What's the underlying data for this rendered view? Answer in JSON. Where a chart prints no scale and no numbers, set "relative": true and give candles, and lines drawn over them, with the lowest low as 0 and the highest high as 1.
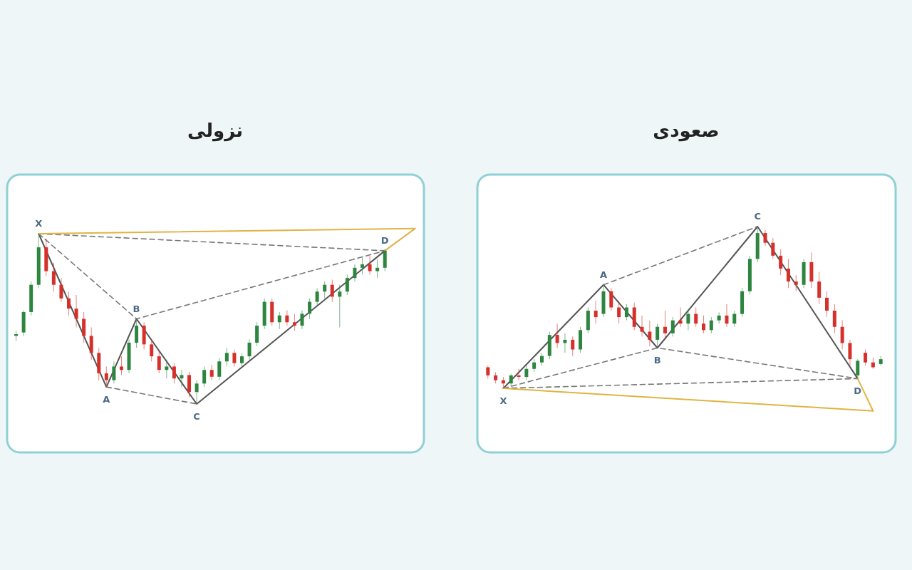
{
  "chart_data": [
    {
      "type": "candlestick",
      "title": "نزولی",
      "relative": true,
      "categories": [
        null,
        null,
        null,
        null,
        null,
        null,
        null,
        null,
        null,
        null,
        null,
        null,
        null,
        null,
        null,
        null,
        null,
        null,
        null,
        null,
        null,
        null,
        null,
        null,
        null,
        null,
        null,
        null,
        null,
        null,
        null,
        null,
        null,
        null,
        null,
        null,
        null,
        null,
        null,
        null,
        null,
        null,
        null,
        null,
        null,
        null,
        null,
        null,
        null,
        null,
        null,
        null,
        null,
        null
      ],
      "series": [
        {
          "ohlc": [
            [
              0.4,
              0.43,
              0.37,
              0.41
            ],
            [
              0.42,
              0.55,
              0.4,
              0.54
            ],
            [
              0.54,
              0.72,
              0.52,
              0.7
            ],
            [
              0.7,
              1,
              0.68,
              0.92
            ],
            [
              0.92,
              0.97,
              0.75,
              0.78
            ],
            [
              0.78,
              0.83,
              0.66,
              0.7
            ],
            [
              0.7,
              0.74,
              0.6,
              0.62
            ],
            [
              0.62,
              0.66,
              0.52,
              0.56
            ],
            [
              0.56,
              0.64,
              0.45,
              0.5
            ],
            [
              0.5,
              0.54,
              0.36,
              0.4
            ],
            [
              0.4,
              0.45,
              0.26,
              0.3
            ],
            [
              0.3,
              0.33,
              0.14,
              0.18
            ],
            [
              0.18,
              0.22,
              0.1,
              0.14
            ],
            [
              0.14,
              0.25,
              0.12,
              0.22
            ],
            [
              0.22,
              0.28,
              0.17,
              0.2
            ],
            [
              0.2,
              0.38,
              0.18,
              0.36
            ],
            [
              0.36,
              0.5,
              0.33,
              0.46
            ],
            [
              0.46,
              0.48,
              0.32,
              0.35
            ],
            [
              0.35,
              0.38,
              0.25,
              0.28
            ],
            [
              0.28,
              0.31,
              0.18,
              0.2
            ],
            [
              0.2,
              0.26,
              0.15,
              0.22
            ],
            [
              0.22,
              0.24,
              0.12,
              0.15
            ],
            [
              0.15,
              0.2,
              0.1,
              0.17
            ],
            [
              0.17,
              0.19,
              0.04,
              0.07
            ],
            [
              0.07,
              0.14,
              0,
              0.12
            ],
            [
              0.12,
              0.22,
              0.1,
              0.2
            ],
            [
              0.2,
              0.23,
              0.14,
              0.16
            ],
            [
              0.16,
              0.27,
              0.14,
              0.25
            ],
            [
              0.25,
              0.33,
              0.22,
              0.3
            ],
            [
              0.3,
              0.32,
              0.22,
              0.24
            ],
            [
              0.24,
              0.3,
              0.22,
              0.28
            ],
            [
              0.28,
              0.38,
              0.26,
              0.36
            ],
            [
              0.36,
              0.48,
              0.34,
              0.46
            ],
            [
              0.46,
              0.62,
              0.44,
              0.6
            ],
            [
              0.6,
              0.62,
              0.46,
              0.48
            ],
            [
              0.48,
              0.54,
              0.44,
              0.52
            ],
            [
              0.52,
              0.55,
              0.46,
              0.48
            ],
            [
              0.48,
              0.53,
              0.43,
              0.46
            ],
            [
              0.46,
              0.55,
              0.44,
              0.53
            ],
            [
              0.53,
              0.62,
              0.5,
              0.6
            ],
            [
              0.6,
              0.68,
              0.58,
              0.66
            ],
            [
              0.66,
              0.72,
              0.62,
              0.7
            ],
            [
              0.7,
              0.73,
              0.6,
              0.63
            ],
            [
              0.63,
              0.7,
              0.45,
              0.66
            ],
            [
              0.66,
              0.76,
              0.64,
              0.74
            ],
            [
              0.74,
              0.82,
              0.72,
              0.8
            ],
            [
              0.8,
              0.86,
              0.76,
              0.82
            ],
            [
              0.82,
              0.87,
              0.76,
              0.78
            ],
            [
              0.78,
              0.85,
              0.74,
              0.8
            ],
            [
              0.8,
              0.91,
              0.78,
              0.9
            ],
            null,
            null,
            null,
            null
          ],
          "colors": [
            "#2e8540",
            "#2e8540",
            "#2e8540",
            "#2e8540",
            "#d6302b",
            "#d6302b",
            "#d6302b",
            "#d6302b",
            "#d6302b",
            "#d6302b",
            "#d6302b",
            "#d6302b",
            "#d6302b",
            "#2e8540",
            "#d6302b",
            "#2e8540",
            "#2e8540",
            "#d6302b",
            "#d6302b",
            "#d6302b",
            "#2e8540",
            "#d6302b",
            "#2e8540",
            "#d6302b",
            "#2e8540",
            "#2e8540",
            "#d6302b",
            "#2e8540",
            "#2e8540",
            "#d6302b",
            "#2e8540",
            "#2e8540",
            "#2e8540",
            "#2e8540",
            "#d6302b",
            "#2e8540",
            "#d6302b",
            "#d6302b",
            "#2e8540",
            "#2e8540",
            "#2e8540",
            "#2e8540",
            "#d6302b",
            "#2e8540",
            "#2e8540",
            "#2e8540",
            "#2e8540",
            "#d6302b",
            "#2e8540",
            "#2e8540",
            null,
            null,
            null,
            null
          ]
        },
        {
          "type": "line",
          "color": "#555555",
          "line_style": "solid",
          "values": [
            null,
            null,
            null,
            1,
            null,
            null,
            null,
            null,
            null,
            null,
            null,
            null,
            0.1,
            null,
            null,
            null,
            0.5,
            null,
            null,
            null,
            null,
            null,
            null,
            null,
            0,
            null,
            null,
            null,
            null,
            null,
            null,
            null,
            null,
            null,
            null,
            null,
            null,
            null,
            null,
            null,
            null,
            null,
            null,
            null,
            null,
            null,
            null,
            null,
            null,
            0.9,
            null,
            null,
            null,
            null
          ]
        },
        {
          "type": "line",
          "color": "#777777",
          "line_style": "dashed",
          "values": [
            null,
            null,
            null,
            1,
            null,
            null,
            null,
            null,
            null,
            null,
            null,
            null,
            null,
            null,
            null,
            null,
            0.5,
            null,
            null,
            null,
            null,
            null,
            null,
            null,
            null,
            null,
            null,
            null,
            null,
            null,
            null,
            null,
            null,
            null,
            null,
            null,
            null,
            null,
            null,
            null,
            null,
            null,
            null,
            null,
            null,
            null,
            null,
            null,
            null,
            0.9,
            null,
            null,
            null,
            null
          ]
        },
        {
          "type": "line",
          "color": "#777777",
          "line_style": "dashed",
          "values": [
            null,
            null,
            null,
            null,
            null,
            null,
            null,
            null,
            null,
            null,
            null,
            null,
            0.1,
            null,
            null,
            null,
            null,
            null,
            null,
            null,
            null,
            null,
            null,
            null,
            0,
            null,
            null,
            null,
            null,
            null,
            null,
            null,
            null,
            null,
            null,
            null,
            null,
            null,
            null,
            null,
            null,
            null,
            null,
            null,
            null,
            null,
            null,
            null,
            null,
            null,
            null,
            null,
            null,
            null
          ]
        },
        {
          "type": "line",
          "color": "#777777",
          "line_style": "dashed",
          "values": [
            null,
            null,
            null,
            1,
            null,
            null,
            null,
            null,
            null,
            null,
            null,
            null,
            null,
            null,
            null,
            null,
            null,
            null,
            null,
            null,
            null,
            null,
            null,
            null,
            null,
            null,
            null,
            null,
            null,
            null,
            null,
            null,
            null,
            null,
            null,
            null,
            null,
            null,
            null,
            null,
            null,
            null,
            null,
            null,
            null,
            null,
            null,
            null,
            null,
            0.9,
            null,
            null,
            null,
            null
          ]
        },
        {
          "type": "line",
          "color": "#e0b444",
          "line_style": "solid",
          "values": [
            null,
            null,
            null,
            1,
            null,
            null,
            null,
            null,
            null,
            null,
            null,
            null,
            null,
            null,
            null,
            null,
            null,
            null,
            null,
            null,
            null,
            null,
            null,
            null,
            null,
            null,
            null,
            null,
            null,
            null,
            null,
            null,
            null,
            null,
            null,
            null,
            null,
            null,
            null,
            null,
            null,
            null,
            null,
            null,
            null,
            null,
            null,
            null,
            null,
            null,
            null,
            null,
            null,
            1.03
          ]
        },
        {
          "type": "line",
          "color": "#e0b444",
          "line_style": "solid",
          "values": [
            null,
            null,
            null,
            null,
            null,
            null,
            null,
            null,
            null,
            null,
            null,
            null,
            null,
            null,
            null,
            null,
            null,
            null,
            null,
            null,
            null,
            null,
            null,
            null,
            null,
            null,
            null,
            null,
            null,
            null,
            null,
            null,
            null,
            null,
            null,
            null,
            null,
            null,
            null,
            null,
            null,
            null,
            null,
            null,
            null,
            null,
            null,
            null,
            null,
            0.9,
            null,
            null,
            null,
            1.03
          ]
        }
      ],
      "annotations": [
        "X",
        "A",
        "B",
        "C",
        "D"
      ]
    },
    {
      "type": "candlestick",
      "title": "صعودی",
      "relative": true,
      "categories": [
        null,
        null,
        null,
        null,
        null,
        null,
        null,
        null,
        null,
        null,
        null,
        null,
        null,
        null,
        null,
        null,
        null,
        null,
        null,
        null,
        null,
        null,
        null,
        null,
        null,
        null,
        null,
        null,
        null,
        null,
        null,
        null,
        null,
        null,
        null,
        null,
        null,
        null,
        null,
        null,
        null,
        null,
        null,
        null,
        null,
        null,
        null,
        null,
        null,
        null,
        null,
        null
      ],
      "series": [
        {
          "ohlc": [
            [
              0.13,
              0.14,
              0.06,
              0.08
            ],
            [
              0.08,
              0.1,
              0.03,
              0.05
            ],
            [
              0.05,
              0.07,
              0,
              0.03
            ],
            [
              0.03,
              0.09,
              0.01,
              0.08
            ],
            [
              0.08,
              0.12,
              0.05,
              0.07
            ],
            [
              0.07,
              0.14,
              0.05,
              0.12
            ],
            [
              0.12,
              0.18,
              0.1,
              0.16
            ],
            [
              0.16,
              0.22,
              0.14,
              0.2
            ],
            [
              0.2,
              0.35,
              0.18,
              0.33
            ],
            [
              0.33,
              0.4,
              0.25,
              0.28
            ],
            [
              0.28,
              0.34,
              0.22,
              0.3
            ],
            [
              0.3,
              0.32,
              0.2,
              0.24
            ],
            [
              0.24,
              0.38,
              0.22,
              0.36
            ],
            [
              0.36,
              0.5,
              0.34,
              0.48
            ],
            [
              0.48,
              0.54,
              0.4,
              0.44
            ],
            [
              0.46,
              0.64,
              0.44,
              0.6
            ],
            [
              0.6,
              0.62,
              0.48,
              0.5
            ],
            [
              0.5,
              0.54,
              0.4,
              0.44
            ],
            [
              0.44,
              0.52,
              0.42,
              0.5
            ],
            [
              0.5,
              0.53,
              0.36,
              0.38
            ],
            [
              0.38,
              0.45,
              0.32,
              0.35
            ],
            [
              0.35,
              0.42,
              0.26,
              0.3
            ],
            [
              0.3,
              0.4,
              0.25,
              0.38
            ],
            [
              0.38,
              0.48,
              0.3,
              0.34
            ],
            [
              0.34,
              0.44,
              0.32,
              0.42
            ],
            [
              0.42,
              0.5,
              0.38,
              0.4
            ],
            [
              0.4,
              0.48,
              0.36,
              0.46
            ],
            [
              0.46,
              0.5,
              0.38,
              0.4
            ],
            [
              0.4,
              0.45,
              0.34,
              0.36
            ],
            [
              0.36,
              0.44,
              0.34,
              0.42
            ],
            [
              0.42,
              0.47,
              0.4,
              0.45
            ],
            [
              0.45,
              0.52,
              0.38,
              0.4
            ],
            [
              0.4,
              0.48,
              0.38,
              0.46
            ],
            [
              0.46,
              0.62,
              0.44,
              0.6
            ],
            [
              0.6,
              0.82,
              0.58,
              0.8
            ],
            [
              0.8,
              1,
              0.78,
              0.96
            ],
            [
              0.96,
              0.98,
              0.88,
              0.9
            ],
            [
              0.9,
              0.93,
              0.8,
              0.82
            ],
            [
              0.82,
              0.86,
              0.7,
              0.74
            ],
            [
              0.74,
              0.8,
              0.62,
              0.66
            ],
            [
              0.66,
              0.7,
              0.6,
              0.64
            ],
            [
              0.64,
              0.8,
              0.62,
              0.78
            ],
            [
              0.78,
              0.84,
              0.62,
              0.66
            ],
            [
              0.66,
              0.72,
              0.52,
              0.56
            ],
            [
              0.56,
              0.6,
              0.44,
              0.48
            ],
            [
              0.48,
              0.52,
              0.34,
              0.38
            ],
            [
              0.38,
              0.42,
              0.24,
              0.28
            ],
            [
              0.28,
              0.3,
              0.14,
              0.18
            ],
            [
              0.08,
              0.18,
              0.06,
              0.17
            ],
            [
              0.22,
              0.24,
              0.14,
              0.16
            ],
            [
              0.16,
              0.19,
              0.12,
              0.13
            ],
            [
              0.15,
              0.2,
              0.14,
              0.18
            ]
          ],
          "colors": [
            "#d6302b",
            "#d6302b",
            "#d6302b",
            "#2e8540",
            "#d6302b",
            "#2e8540",
            "#2e8540",
            "#2e8540",
            "#2e8540",
            "#d6302b",
            "#2e8540",
            "#d6302b",
            "#2e8540",
            "#2e8540",
            "#d6302b",
            "#2e8540",
            "#d6302b",
            "#d6302b",
            "#2e8540",
            "#d6302b",
            "#d6302b",
            "#d6302b",
            "#2e8540",
            "#d6302b",
            "#2e8540",
            "#d6302b",
            "#2e8540",
            "#d6302b",
            "#d6302b",
            "#2e8540",
            "#2e8540",
            "#d6302b",
            "#2e8540",
            "#2e8540",
            "#2e8540",
            "#2e8540",
            "#d6302b",
            "#d6302b",
            "#d6302b",
            "#d6302b",
            "#d6302b",
            "#2e8540",
            "#d6302b",
            "#d6302b",
            "#d6302b",
            "#d6302b",
            "#d6302b",
            "#d6302b",
            "#2e8540",
            "#d6302b",
            "#d6302b",
            "#2e8540"
          ]
        },
        {
          "type": "line",
          "color": "#555555",
          "line_style": "solid",
          "values": [
            null,
            null,
            0,
            null,
            null,
            null,
            null,
            null,
            null,
            null,
            null,
            null,
            null,
            null,
            null,
            0.64,
            null,
            null,
            null,
            null,
            null,
            null,
            0.25,
            null,
            null,
            null,
            null,
            null,
            null,
            null,
            null,
            null,
            null,
            null,
            null,
            1,
            null,
            null,
            null,
            null,
            null,
            null,
            null,
            null,
            null,
            null,
            null,
            null,
            0.06,
            null,
            null,
            null
          ]
        },
        {
          "type": "line",
          "color": "#777777",
          "line_style": "dashed",
          "values": [
            null,
            null,
            null,
            null,
            null,
            null,
            null,
            null,
            null,
            null,
            null,
            null,
            null,
            null,
            null,
            0.64,
            null,
            null,
            null,
            null,
            null,
            null,
            null,
            null,
            null,
            null,
            null,
            null,
            null,
            null,
            null,
            null,
            null,
            null,
            null,
            1,
            null,
            null,
            null,
            null,
            null,
            null,
            null,
            null,
            null,
            null,
            null,
            null,
            null,
            null,
            null,
            null
          ]
        },
        {
          "type": "line",
          "color": "#777777",
          "line_style": "dashed",
          "values": [
            null,
            null,
            0,
            null,
            null,
            null,
            null,
            null,
            null,
            null,
            null,
            null,
            null,
            null,
            null,
            null,
            null,
            null,
            null,
            null,
            null,
            null,
            0.25,
            null,
            null,
            null,
            null,
            null,
            null,
            null,
            null,
            null,
            null,
            null,
            null,
            null,
            null,
            null,
            null,
            null,
            null,
            null,
            null,
            null,
            null,
            null,
            null,
            null,
            0.06,
            null,
            null,
            null
          ]
        },
        {
          "type": "line",
          "color": "#777777",
          "line_style": "dashed",
          "values": [
            null,
            null,
            0,
            null,
            null,
            null,
            null,
            null,
            null,
            null,
            null,
            null,
            null,
            null,
            null,
            null,
            null,
            null,
            null,
            null,
            null,
            null,
            null,
            null,
            null,
            null,
            null,
            null,
            null,
            null,
            null,
            null,
            null,
            null,
            null,
            null,
            null,
            null,
            null,
            null,
            null,
            null,
            null,
            null,
            null,
            null,
            null,
            null,
            0.06,
            null,
            null,
            null
          ]
        },
        {
          "type": "line",
          "color": "#e0b444",
          "line_style": "solid",
          "values": [
            null,
            null,
            0,
            null,
            null,
            null,
            null,
            null,
            null,
            null,
            null,
            null,
            null,
            null,
            null,
            null,
            null,
            null,
            null,
            null,
            null,
            null,
            null,
            null,
            null,
            null,
            null,
            null,
            null,
            null,
            null,
            null,
            null,
            null,
            null,
            null,
            null,
            null,
            null,
            null,
            null,
            null,
            null,
            null,
            null,
            null,
            null,
            null,
            null,
            null,
            -0.14,
            null
          ]
        },
        {
          "type": "line",
          "color": "#e0b444",
          "line_style": "solid",
          "values": [
            null,
            null,
            null,
            null,
            null,
            null,
            null,
            null,
            null,
            null,
            null,
            null,
            null,
            null,
            null,
            null,
            null,
            null,
            null,
            null,
            null,
            null,
            null,
            null,
            null,
            null,
            null,
            null,
            null,
            null,
            null,
            null,
            null,
            null,
            null,
            null,
            null,
            null,
            null,
            null,
            null,
            null,
            null,
            null,
            null,
            null,
            null,
            null,
            0.06,
            null,
            -0.14,
            null
          ]
        }
      ],
      "annotations": [
        "X",
        "A",
        "B",
        "C",
        "D"
      ]
    }
  ]
}
